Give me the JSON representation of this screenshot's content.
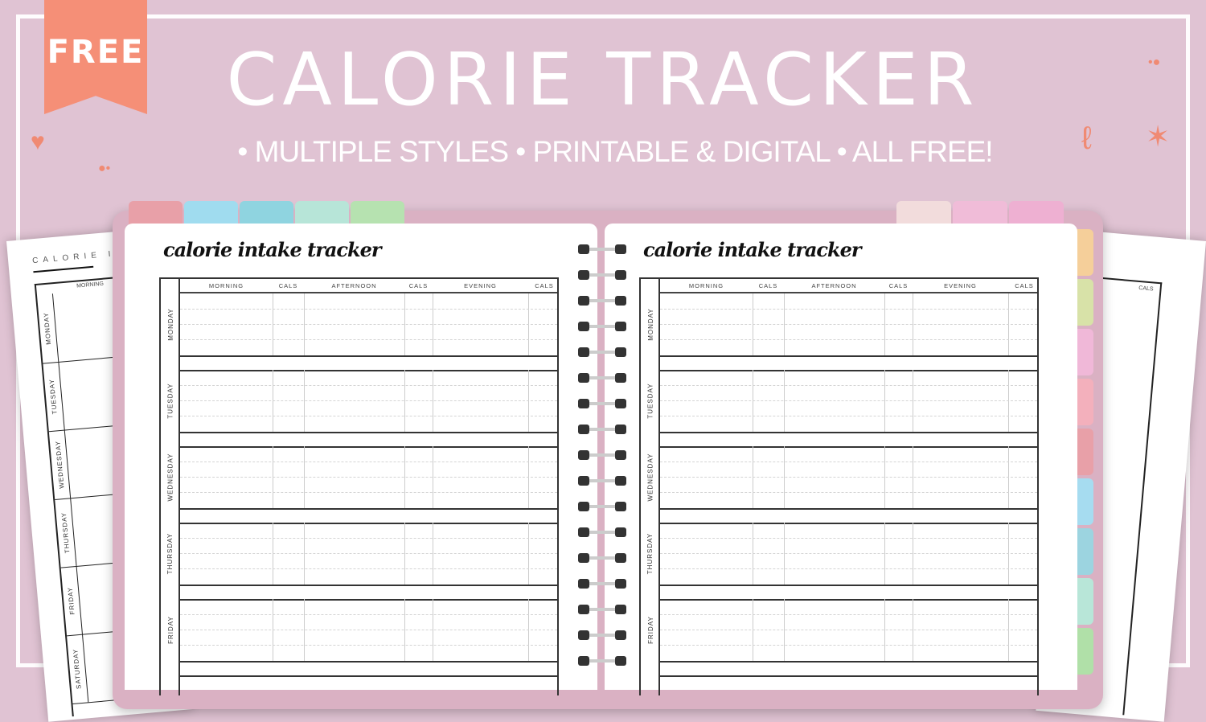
{
  "banner": {
    "ribbon": "FREE",
    "title": "CALORIE TRACKER",
    "subtitle": "• MULTIPLE STYLES • PRINTABLE & DIGITAL • ALL FREE!"
  },
  "colors": {
    "background": "#e0c3d3",
    "ribbon": "#f58f77",
    "cover": "#dab1c3"
  },
  "top_tabs_left": [
    "#e8a0a8",
    "#a0dcef",
    "#8fd4e0",
    "#b7e5d8",
    "#b6e2b0"
  ],
  "top_tabs_right": [
    "#f2dcdc",
    "#f0bcd8",
    "#eeb0d2"
  ],
  "side_tabs": [
    "#f5cf9a",
    "#d8e2a8",
    "#f0b8d8",
    "#f3b0bc",
    "#e8a0a8",
    "#a6dcf0",
    "#9cd4e0",
    "#b8e6d8",
    "#b0e0a8"
  ],
  "planner": {
    "page_title": "calorie intake tracker",
    "columns": [
      "MORNING",
      "CALS",
      "AFTERNOON",
      "CALS",
      "EVENING",
      "CALS"
    ],
    "days": [
      "MONDAY",
      "TUESDAY",
      "WEDNESDAY",
      "THURSDAY",
      "FRIDAY"
    ]
  },
  "side_left": {
    "title": "CALORIE IN",
    "column": "MORNING",
    "days": [
      "MONDAY",
      "TUESDAY",
      "WEDNESDAY",
      "THURSDAY",
      "FRIDAY",
      "SATURDAY"
    ]
  },
  "side_right": {
    "column": "CALS"
  }
}
